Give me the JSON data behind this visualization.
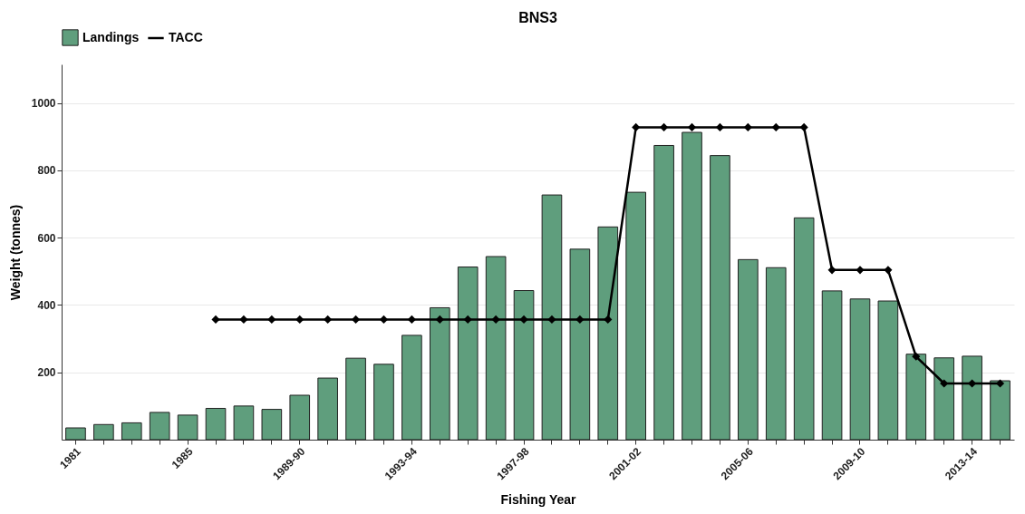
{
  "chart_data": {
    "type": "bar",
    "title": "BNS3",
    "xlabel": "Fishing Year",
    "ylabel": "Weight (tonnes)",
    "categories": [
      "1981",
      null,
      null,
      null,
      "1985",
      null,
      null,
      null,
      "1989-90",
      null,
      null,
      null,
      "1993-94",
      null,
      null,
      null,
      "1997-98",
      null,
      null,
      null,
      "2001-02",
      null,
      null,
      null,
      "2005-06",
      null,
      null,
      null,
      "2009-10",
      null,
      null,
      null,
      "2013-14",
      null
    ],
    "series": [
      {
        "name": "Landings",
        "color": "#5f9e7d",
        "values": [
          35,
          45,
          50,
          81,
          73,
          93,
          100,
          90,
          132,
          183,
          242,
          224,
          310,
          392,
          513,
          544,
          443,
          727,
          566,
          632,
          735,
          874,
          913,
          844,
          535,
          511,
          659,
          442,
          418,
          412,
          254,
          243,
          248,
          175
        ]
      },
      {
        "name": "TACC",
        "type": "line",
        "color": "#000000",
        "marker": "diamond",
        "line_style": "solid",
        "values": [
          null,
          null,
          null,
          null,
          null,
          357,
          357,
          357,
          357,
          357,
          357,
          357,
          357,
          357,
          357,
          357,
          357,
          357,
          357,
          357,
          928,
          928,
          928,
          928,
          928,
          928,
          928,
          504,
          504,
          504,
          247,
          167,
          167,
          167
        ]
      }
    ],
    "ylim": [
      0,
      1115
    ],
    "yticks": [
      200,
      400,
      600,
      800,
      {
        "value": 1000,
        "label": "1000"
      }
    ],
    "grid": "y",
    "legend": "top"
  }
}
